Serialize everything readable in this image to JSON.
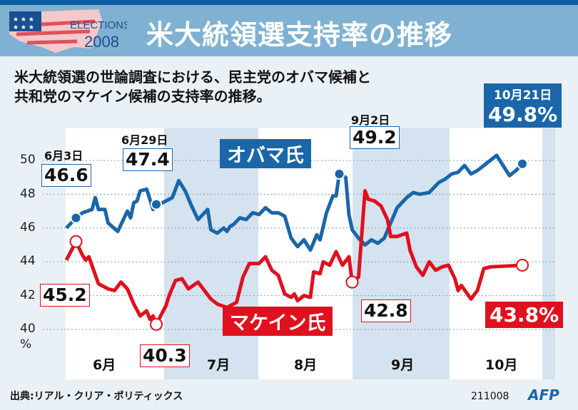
{
  "header": {
    "logo_line1": "ELECTIONS",
    "logo_line2": "2008",
    "title": "米大統領選支持率の推移"
  },
  "subtitle_line1": "米大統領選の世論調査における、民主党のオバマ候補と",
  "subtitle_line2": "共和党のマケイン候補の支持率の推移。",
  "colors": {
    "obama": "#1a66a8",
    "mccain": "#e0101e",
    "band": "#d4e3ef"
  },
  "footer": {
    "source": "出典:リアル・クリア・ポリティックス",
    "code": "211008",
    "agency": "AFP"
  },
  "chart_data": {
    "type": "line",
    "title": "米大統領選支持率の推移",
    "ylabel": "%",
    "ylim": [
      40,
      50
    ],
    "yticks": [
      "40",
      "42",
      "44",
      "46",
      "48",
      "50"
    ],
    "y_unit": "%",
    "x_unit": "days since June 1, 2008",
    "months": [
      "6月",
      "7月",
      "8月",
      "9月",
      "10月"
    ],
    "grid": true,
    "series": [
      {
        "name": "オバマ氏",
        "x": [
          0,
          3,
          5,
          8,
          9,
          10,
          12,
          13,
          16,
          18,
          19,
          20,
          21,
          22,
          23,
          25,
          26,
          27,
          28,
          30,
          31,
          33,
          35,
          37,
          39,
          41,
          44,
          45,
          47,
          49,
          50,
          51,
          52,
          54,
          56,
          58,
          60,
          62,
          64,
          66,
          68,
          70,
          72,
          74,
          76,
          78,
          79,
          81,
          83,
          84,
          85,
          87,
          88,
          89,
          91,
          93,
          95,
          97,
          99,
          101,
          103,
          106,
          108,
          110,
          113,
          116,
          118,
          120,
          122,
          124,
          126,
          128,
          130,
          132,
          134,
          136,
          138,
          140,
          142
        ],
        "values": [
          46.0,
          46.6,
          46.9,
          47.1,
          47.8,
          47.1,
          47.1,
          46.3,
          45.8,
          46.6,
          47.0,
          46.6,
          47.5,
          47.6,
          48.2,
          48.3,
          47.7,
          47.1,
          47.4,
          47.5,
          47.6,
          47.8,
          48.8,
          48.2,
          47.3,
          46.5,
          47.1,
          45.9,
          45.7,
          46.0,
          45.8,
          46.1,
          46.2,
          46.6,
          46.5,
          46.9,
          46.8,
          47.2,
          46.9,
          46.9,
          46.7,
          45.4,
          44.9,
          45.3,
          44.7,
          45.6,
          45.3,
          46.9,
          47.9,
          47.9,
          49.2,
          49.0,
          46.8,
          45.9,
          45.4,
          45.0,
          45.3,
          45.1,
          45.4,
          46.3,
          47.2,
          47.8,
          48.1,
          48.0,
          48.1,
          48.7,
          48.9,
          49.2,
          49.3,
          49.7,
          49.2,
          49.4,
          49.7,
          50.0,
          50.3,
          49.7,
          49.1,
          49.4,
          49.8
        ]
      },
      {
        "name": "マケイン氏",
        "x": [
          0,
          3,
          5,
          6,
          7,
          10,
          11,
          13,
          15,
          17,
          19,
          21,
          23,
          25,
          26,
          27,
          28,
          31,
          32,
          34,
          36,
          38,
          41,
          43,
          45,
          47,
          50,
          52,
          53,
          55,
          57,
          60,
          62,
          64,
          66,
          68,
          70,
          71,
          72,
          74,
          76,
          77,
          79,
          80,
          82,
          84,
          86,
          88,
          89,
          91,
          93,
          94,
          96,
          98,
          100,
          101,
          103,
          106,
          107,
          109,
          111,
          113,
          115,
          117,
          119,
          121,
          122,
          123,
          126,
          128,
          130,
          132,
          142
        ],
        "values": [
          44.1,
          45.2,
          44.4,
          44.1,
          44.3,
          42.7,
          42.6,
          42.4,
          42.3,
          42.8,
          42.4,
          41.5,
          40.8,
          41.1,
          40.6,
          40.8,
          40.3,
          41.4,
          42.0,
          42.9,
          43.0,
          42.4,
          42.8,
          42.3,
          41.8,
          41.5,
          41.3,
          41.5,
          41.6,
          43.1,
          43.9,
          43.9,
          44.3,
          43.5,
          43.2,
          42.1,
          41.9,
          42.1,
          41.7,
          42.0,
          41.9,
          43.4,
          43.3,
          44.0,
          43.8,
          44.6,
          43.8,
          44.3,
          42.8,
          43.1,
          48.2,
          47.7,
          47.6,
          47.3,
          46.5,
          45.5,
          45.5,
          45.7,
          44.7,
          43.7,
          43.2,
          44.0,
          43.5,
          43.7,
          43.8,
          43.0,
          42.3,
          42.6,
          41.8,
          42.3,
          43.6,
          43.7,
          43.8
        ]
      }
    ],
    "annotations": [
      {
        "series": "オバマ氏",
        "date": "6月3日",
        "label": "46.6",
        "x": 3,
        "y": 46.6
      },
      {
        "series": "オバマ氏",
        "date": "6月29日",
        "label": "47.4",
        "x": 28,
        "y": 47.4
      },
      {
        "series": "オバマ氏",
        "date": "9月2日",
        "label": "49.2",
        "x": 85,
        "y": 49.2
      },
      {
        "series": "オバマ氏",
        "date": "10月21日",
        "label": "49.8%",
        "x": 142,
        "y": 49.8
      },
      {
        "series": "マケイン氏",
        "label": "45.2",
        "x": 3,
        "y": 45.2
      },
      {
        "series": "マケイン氏",
        "label": "40.3",
        "x": 28,
        "y": 40.3
      },
      {
        "series": "マケイン氏",
        "label": "42.8",
        "x": 89,
        "y": 42.8
      },
      {
        "series": "マケイン氏",
        "label": "43.8%",
        "x": 142,
        "y": 43.8
      }
    ]
  }
}
